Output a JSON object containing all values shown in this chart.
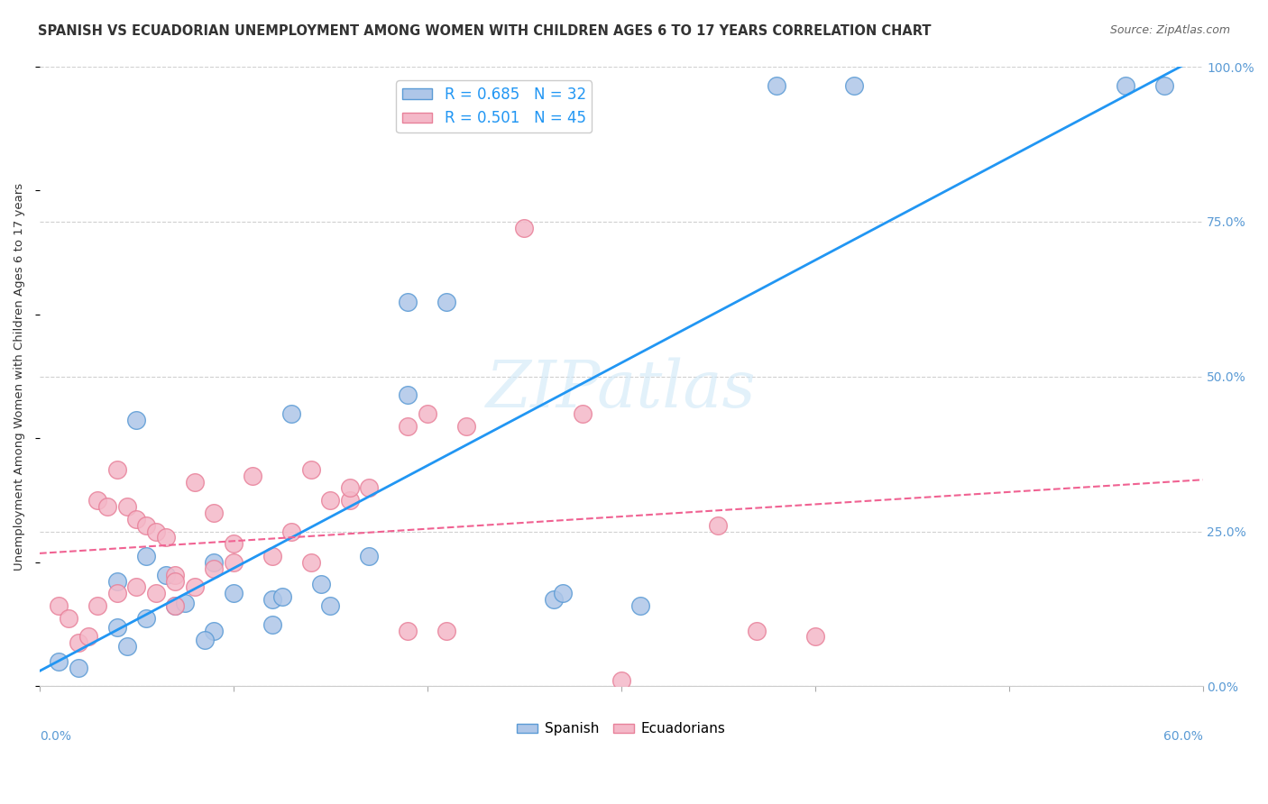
{
  "title": "SPANISH VS ECUADORIAN UNEMPLOYMENT AMONG WOMEN WITH CHILDREN AGES 6 TO 17 YEARS CORRELATION CHART",
  "source": "Source: ZipAtlas.com",
  "xlabel_bottom_left": "0.0%",
  "xlabel_bottom_right": "60.0%",
  "ylabel": "Unemployment Among Women with Children Ages 6 to 17 years",
  "yticks": [
    "0.0%",
    "25.0%",
    "50.0%",
    "75.0%",
    "100.0%"
  ],
  "legend_label1": "R = 0.685   N = 32",
  "legend_label2": "R = 0.501   N = 45",
  "legend_bottom_label1": "Spanish",
  "legend_bottom_label2": "Ecuadorians",
  "blue_color": "#6baed6",
  "pink_color": "#fa9fb5",
  "blue_line_color": "#2196F3",
  "pink_line_color": "#F06292",
  "watermark": "ZIPatlas",
  "blue_scatter_x": [
    0.055,
    0.065,
    0.19,
    0.21,
    0.19,
    0.13,
    0.05,
    0.09,
    0.07,
    0.04,
    0.04,
    0.045,
    0.055,
    0.1,
    0.12,
    0.125,
    0.145,
    0.17,
    0.15,
    0.12,
    0.09,
    0.085,
    0.075,
    0.265,
    0.27,
    0.31,
    0.01,
    0.02,
    0.38,
    0.42,
    0.58,
    0.56
  ],
  "blue_scatter_y": [
    0.21,
    0.18,
    0.62,
    0.62,
    0.47,
    0.44,
    0.43,
    0.2,
    0.13,
    0.17,
    0.095,
    0.065,
    0.11,
    0.15,
    0.14,
    0.145,
    0.165,
    0.21,
    0.13,
    0.1,
    0.09,
    0.075,
    0.135,
    0.14,
    0.15,
    0.13,
    0.04,
    0.03,
    0.97,
    0.97,
    0.97,
    0.97
  ],
  "pink_scatter_x": [
    0.03,
    0.035,
    0.04,
    0.045,
    0.05,
    0.055,
    0.06,
    0.065,
    0.07,
    0.07,
    0.08,
    0.09,
    0.1,
    0.11,
    0.13,
    0.14,
    0.15,
    0.16,
    0.17,
    0.19,
    0.2,
    0.22,
    0.25,
    0.28,
    0.35,
    0.37,
    0.01,
    0.015,
    0.02,
    0.025,
    0.03,
    0.04,
    0.05,
    0.06,
    0.07,
    0.08,
    0.09,
    0.1,
    0.12,
    0.14,
    0.16,
    0.19,
    0.21,
    0.3,
    0.4
  ],
  "pink_scatter_y": [
    0.3,
    0.29,
    0.35,
    0.29,
    0.27,
    0.26,
    0.25,
    0.24,
    0.13,
    0.18,
    0.33,
    0.28,
    0.23,
    0.34,
    0.25,
    0.35,
    0.3,
    0.3,
    0.32,
    0.42,
    0.44,
    0.42,
    0.74,
    0.44,
    0.26,
    0.09,
    0.13,
    0.11,
    0.07,
    0.08,
    0.13,
    0.15,
    0.16,
    0.15,
    0.17,
    0.16,
    0.19,
    0.2,
    0.21,
    0.2,
    0.32,
    0.09,
    0.09,
    0.01,
    0.08
  ],
  "xlim": [
    0.0,
    0.6
  ],
  "ylim": [
    0.0,
    1.0
  ],
  "xtick_positions": [
    0.0,
    0.1,
    0.2,
    0.3,
    0.4,
    0.5,
    0.6
  ],
  "ytick_positions": [
    0.0,
    0.25,
    0.5,
    0.75,
    1.0
  ],
  "background_color": "#ffffff",
  "grid_color": "#d0d0d0",
  "title_fontsize": 11,
  "source_fontsize": 9
}
